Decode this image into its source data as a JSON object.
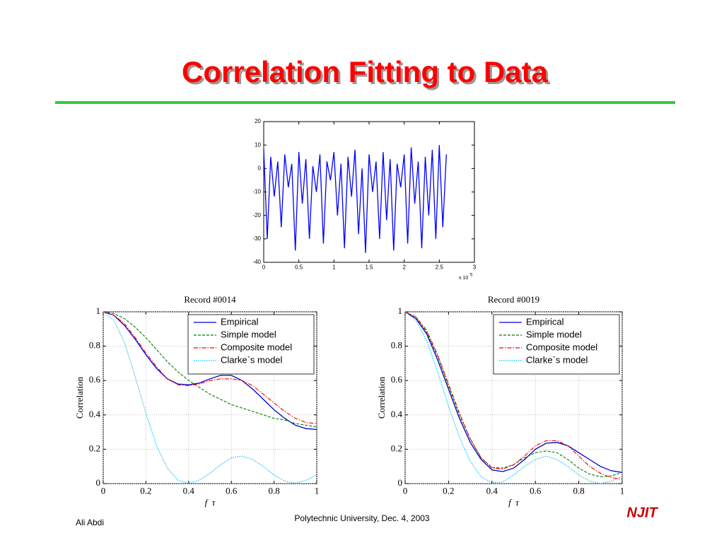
{
  "title": "Correlation Fitting to Data",
  "footer": {
    "author": "Ali Abdi",
    "venue": "Polytechnic University, Dec. 4, 2003",
    "logo": "NJIT"
  },
  "chart_data": [
    {
      "type": "line",
      "x_multiplier": "x 10",
      "x_multiplier_exp": "5",
      "x": [
        0,
        0.05,
        0.1,
        0.15,
        0.2,
        0.25,
        0.3,
        0.35,
        0.4,
        0.45,
        0.5,
        0.55,
        0.6,
        0.65,
        0.7,
        0.75,
        0.8,
        0.85,
        0.9,
        0.95,
        1,
        1.05,
        1.1,
        1.15,
        1.2,
        1.25,
        1.3,
        1.35,
        1.4,
        1.45,
        1.5,
        1.55,
        1.6,
        1.65,
        1.7,
        1.75,
        1.8,
        1.85,
        1.9,
        1.95,
        2,
        2.05,
        2.1,
        2.15,
        2.2,
        2.25,
        2.3,
        2.35,
        2.4,
        2.45,
        2.5,
        2.55,
        2.6
      ],
      "series": [
        {
          "name": "signal",
          "color": "#0000ff",
          "values": [
            8,
            -30,
            5,
            -12,
            3,
            -25,
            6,
            -8,
            2,
            -35,
            7,
            -15,
            4,
            -30,
            1,
            -10,
            6,
            -32,
            3,
            -5,
            7,
            -20,
            2,
            -34,
            5,
            -12,
            8,
            -28,
            0,
            -36,
            6,
            -10,
            3,
            -30,
            7,
            -22,
            4,
            -35,
            2,
            -8,
            6,
            -32,
            9,
            -15,
            3,
            -34,
            5,
            -20,
            8,
            -30,
            10,
            -25,
            6
          ]
        }
      ],
      "xlim": [
        0,
        3
      ],
      "xticks": [
        0,
        0.5,
        1,
        1.5,
        2,
        2.5,
        3
      ],
      "ylim": [
        -40,
        20
      ],
      "yticks": [
        -40,
        -30,
        -20,
        -10,
        0,
        10,
        20
      ],
      "grid": false
    },
    {
      "type": "line",
      "title": "Record #0014",
      "xlabel": "f  τ",
      "ylabel": "Correlation",
      "x": [
        0,
        0.05,
        0.1,
        0.15,
        0.2,
        0.25,
        0.3,
        0.35,
        0.4,
        0.45,
        0.5,
        0.55,
        0.6,
        0.65,
        0.7,
        0.75,
        0.8,
        0.85,
        0.9,
        0.95,
        1
      ],
      "series": [
        {
          "name": "Empirical",
          "color": "#0000cc",
          "style": "solid",
          "values": [
            1,
            0.98,
            0.92,
            0.84,
            0.75,
            0.67,
            0.61,
            0.58,
            0.575,
            0.585,
            0.61,
            0.63,
            0.63,
            0.6,
            0.55,
            0.49,
            0.43,
            0.38,
            0.34,
            0.32,
            0.315
          ]
        },
        {
          "name": "Simple model",
          "color": "#008000",
          "style": "dashed",
          "values": [
            1,
            0.99,
            0.96,
            0.91,
            0.85,
            0.78,
            0.71,
            0.65,
            0.6,
            0.56,
            0.52,
            0.49,
            0.46,
            0.44,
            0.42,
            0.4,
            0.38,
            0.37,
            0.35,
            0.34,
            0.33
          ]
        },
        {
          "name": "Composite model",
          "color": "#ff0000",
          "style": "dashdot",
          "values": [
            1,
            0.98,
            0.93,
            0.85,
            0.76,
            0.68,
            0.61,
            0.575,
            0.57,
            0.58,
            0.6,
            0.61,
            0.61,
            0.6,
            0.57,
            0.52,
            0.47,
            0.42,
            0.38,
            0.355,
            0.35
          ]
        },
        {
          "name": "Clarke`s model",
          "color": "#00bfff",
          "style": "dotted",
          "values": [
            1,
            0.95,
            0.82,
            0.62,
            0.41,
            0.22,
            0.09,
            0.02,
            0.001,
            0.02,
            0.06,
            0.11,
            0.15,
            0.16,
            0.14,
            0.1,
            0.05,
            0.015,
            0.002,
            0.02,
            0.05
          ]
        }
      ],
      "xlim": [
        0,
        1
      ],
      "xticks": [
        0,
        0.2,
        0.4,
        0.6,
        0.8,
        1
      ],
      "ylim": [
        0,
        1
      ],
      "yticks": [
        0,
        0.2,
        0.4,
        0.6,
        0.8,
        1
      ],
      "grid": true,
      "legend": "upper right"
    },
    {
      "type": "line",
      "title": "Record #0019",
      "xlabel": "f  τ",
      "ylabel": "Correlation",
      "x": [
        0,
        0.05,
        0.1,
        0.15,
        0.2,
        0.25,
        0.3,
        0.35,
        0.4,
        0.45,
        0.5,
        0.55,
        0.6,
        0.65,
        0.7,
        0.75,
        0.8,
        0.85,
        0.9,
        0.95,
        1
      ],
      "series": [
        {
          "name": "Empirical",
          "color": "#0000cc",
          "style": "solid",
          "values": [
            1,
            0.96,
            0.87,
            0.72,
            0.55,
            0.38,
            0.24,
            0.14,
            0.08,
            0.07,
            0.09,
            0.14,
            0.2,
            0.235,
            0.24,
            0.22,
            0.18,
            0.14,
            0.1,
            0.075,
            0.065
          ]
        },
        {
          "name": "Simple model",
          "color": "#008000",
          "style": "dashed",
          "values": [
            1,
            0.97,
            0.88,
            0.74,
            0.57,
            0.4,
            0.26,
            0.15,
            0.095,
            0.09,
            0.11,
            0.15,
            0.18,
            0.19,
            0.18,
            0.14,
            0.09,
            0.055,
            0.04,
            0.045,
            0.065
          ]
        },
        {
          "name": "Composite model",
          "color": "#ff0000",
          "style": "dashdot",
          "values": [
            1,
            0.97,
            0.89,
            0.75,
            0.58,
            0.41,
            0.26,
            0.15,
            0.09,
            0.085,
            0.11,
            0.16,
            0.22,
            0.25,
            0.25,
            0.22,
            0.16,
            0.1,
            0.06,
            0.035,
            0.025
          ]
        },
        {
          "name": "Clarke`s model",
          "color": "#00bfff",
          "style": "dotted",
          "values": [
            1,
            0.95,
            0.83,
            0.65,
            0.45,
            0.27,
            0.13,
            0.04,
            0.005,
            0.01,
            0.05,
            0.1,
            0.14,
            0.16,
            0.14,
            0.1,
            0.05,
            0.015,
            0,
            0.015,
            0.04
          ]
        }
      ],
      "xlim": [
        0,
        1
      ],
      "xticks": [
        0,
        0.2,
        0.4,
        0.6,
        0.8,
        1
      ],
      "ylim": [
        0,
        1
      ],
      "yticks": [
        0,
        0.2,
        0.4,
        0.6,
        0.8,
        1
      ],
      "grid": true,
      "legend": "upper right"
    }
  ]
}
